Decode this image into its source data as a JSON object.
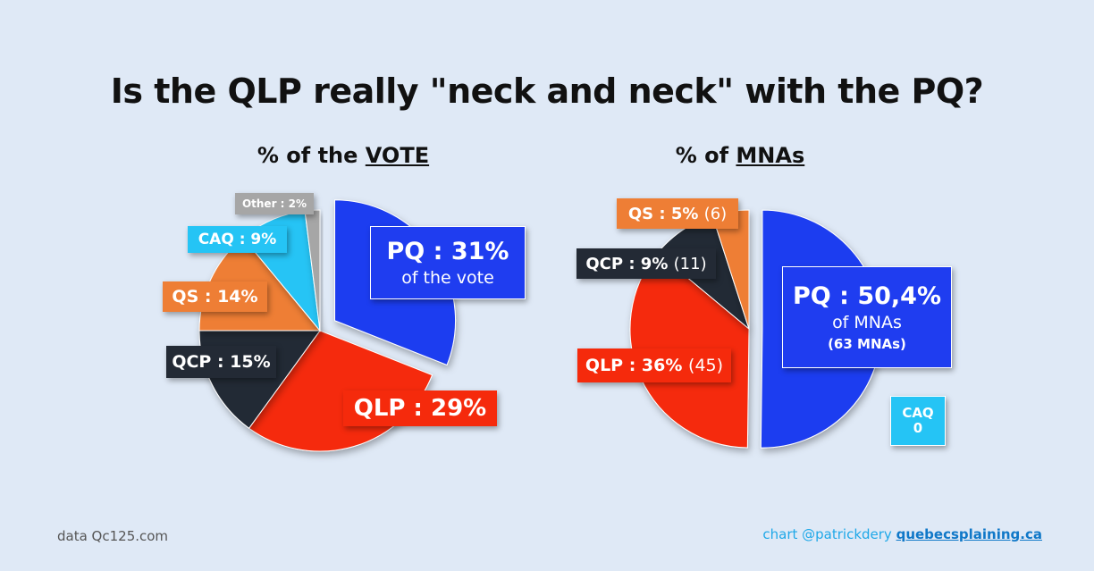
{
  "title": "Is the QLP really \"neck and neck\" with the PQ?",
  "colors": {
    "pq": "#1f3df0",
    "qlp": "#f52a0c",
    "qcp": "#232a35",
    "qs": "#ee7e35",
    "caq": "#25c4f5",
    "other": "#a6a6a6",
    "background": "#dfe9f6"
  },
  "chart_data": [
    {
      "type": "pie",
      "title_prefix": "% of the ",
      "title_emphasis": "VOTE",
      "slices": [
        {
          "party": "PQ",
          "value": 31,
          "label": "PQ : 31%",
          "sublabel": "of the vote"
        },
        {
          "party": "QLP",
          "value": 29,
          "label": "QLP : 29%"
        },
        {
          "party": "QCP",
          "value": 15,
          "label": "QCP : 15%"
        },
        {
          "party": "QS",
          "value": 14,
          "label": "QS : 14%"
        },
        {
          "party": "CAQ",
          "value": 9,
          "label": "CAQ : 9%"
        },
        {
          "party": "Other",
          "value": 2,
          "label": "Other : 2%"
        }
      ]
    },
    {
      "type": "pie",
      "title_prefix": "% of ",
      "title_emphasis": "MNAs",
      "slices": [
        {
          "party": "PQ",
          "value": 50.4,
          "seats": 63,
          "label": "PQ : 50,4%",
          "sublabel": "of MNAs",
          "seats_label": "(63 MNAs)"
        },
        {
          "party": "QLP",
          "value": 36,
          "seats": 45,
          "label": "QLP : 36%",
          "seats_label": "(45)"
        },
        {
          "party": "QCP",
          "value": 9,
          "seats": 11,
          "label": "QCP : 9%",
          "seats_label": "(11)"
        },
        {
          "party": "QS",
          "value": 5,
          "seats": 6,
          "label": "QS : 5%",
          "seats_label": "(6)"
        },
        {
          "party": "CAQ",
          "value": 0,
          "seats": 0,
          "label": "CAQ",
          "seats_label": "0"
        }
      ]
    }
  ],
  "footer": {
    "source": "data Qc125.com",
    "credit_prefix": "chart @patrickdery ",
    "credit_link": "quebecsplaining.ca"
  }
}
